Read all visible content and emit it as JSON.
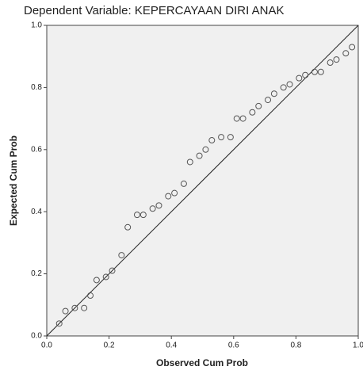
{
  "chart_data": {
    "type": "scatter",
    "title": "Dependent Variable: KEPERCAYAAN DIRI ANAK",
    "x_label": "Observed Cum Prob",
    "y_label": "Expected Cum Prob",
    "x": [
      0.04,
      0.06,
      0.09,
      0.12,
      0.14,
      0.16,
      0.19,
      0.21,
      0.24,
      0.26,
      0.29,
      0.31,
      0.34,
      0.36,
      0.39,
      0.41,
      0.44,
      0.46,
      0.49,
      0.51,
      0.53,
      0.56,
      0.59,
      0.61,
      0.63,
      0.66,
      0.68,
      0.71,
      0.73,
      0.76,
      0.78,
      0.81,
      0.83,
      0.86,
      0.88,
      0.91,
      0.93,
      0.96,
      0.98
    ],
    "values": [
      0.04,
      0.08,
      0.09,
      0.09,
      0.13,
      0.18,
      0.19,
      0.21,
      0.26,
      0.35,
      0.39,
      0.39,
      0.41,
      0.42,
      0.45,
      0.46,
      0.49,
      0.56,
      0.58,
      0.6,
      0.63,
      0.64,
      0.64,
      0.7,
      0.7,
      0.72,
      0.74,
      0.76,
      0.78,
      0.8,
      0.81,
      0.83,
      0.84,
      0.85,
      0.85,
      0.88,
      0.89,
      0.91,
      0.93
    ],
    "color": "#555555",
    "xlim": [
      0,
      1
    ],
    "ylim": [
      0,
      1
    ],
    "xticks": [
      {
        "value": 0,
        "label": "0.0"
      },
      {
        "value": 0.2,
        "label": "0.2"
      },
      {
        "value": 0.4,
        "label": "0.4"
      },
      {
        "value": 0.6,
        "label": "0.6"
      },
      {
        "value": 0.8,
        "label": "0.8"
      },
      {
        "value": 1,
        "label": "1.0"
      }
    ],
    "yticks": [
      {
        "value": 0,
        "label": "0.0"
      },
      {
        "value": 0.2,
        "label": "0.2"
      },
      {
        "value": 0.4,
        "label": "0.4"
      },
      {
        "value": 0.6,
        "label": "0.6"
      },
      {
        "value": 0.8,
        "label": "0.8"
      },
      {
        "value": 1,
        "label": "1.0"
      }
    ]
  }
}
